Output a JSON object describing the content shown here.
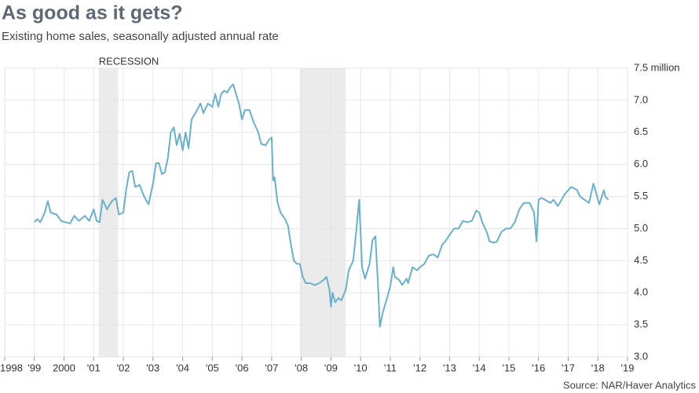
{
  "chart_data": {
    "type": "line",
    "title": "As good as it gets?",
    "subtitle": "Existing home sales, seasonally adjusted annual rate",
    "source": "Source: NAR/Haver Analytics",
    "annotations": [
      "RECESSION"
    ],
    "recessions": [
      [
        2001.17,
        2001.83
      ],
      [
        2007.95,
        2009.5
      ]
    ],
    "xlim": [
      1998,
      2019
    ],
    "xticks": [
      1998,
      {
        "value": 1999,
        "label": "'99"
      },
      2000,
      {
        "value": 2001,
        "label": "'01"
      },
      {
        "value": 2002,
        "label": "'02"
      },
      {
        "value": 2003,
        "label": "'03"
      },
      {
        "value": 2004,
        "label": "'04"
      },
      {
        "value": 2005,
        "label": "'05"
      },
      {
        "value": 2006,
        "label": "'06"
      },
      {
        "value": 2007,
        "label": "'07"
      },
      {
        "value": 2008,
        "label": "'08"
      },
      {
        "value": 2009,
        "label": "'09"
      },
      {
        "value": 2010,
        "label": "'10"
      },
      {
        "value": 2011,
        "label": "'11"
      },
      {
        "value": 2012,
        "label": "'12"
      },
      {
        "value": 2013,
        "label": "'13"
      },
      {
        "value": 2014,
        "label": "'14"
      },
      {
        "value": 2015,
        "label": "'15"
      },
      {
        "value": 2016,
        "label": "'16"
      },
      {
        "value": 2017,
        "label": "'17"
      },
      {
        "value": 2018,
        "label": "'18"
      },
      {
        "value": 2019,
        "label": "'19"
      }
    ],
    "ylim": [
      3.0,
      7.5
    ],
    "yticks": [
      {
        "value": 3.0,
        "label": "3.0"
      },
      3.5,
      {
        "value": 4.0,
        "label": "4.0"
      },
      4.5,
      {
        "value": 5.0,
        "label": "5.0"
      },
      5.5,
      {
        "value": 6.0,
        "label": "6.0"
      },
      6.5,
      {
        "value": 7.0,
        "label": "7.0"
      },
      {
        "value": 7.5,
        "label": "7.5 million"
      }
    ],
    "grid": true,
    "series": [
      {
        "name": "Existing home sales",
        "color": "#6ab0c9",
        "x": [
          1999.0,
          1999.1,
          1999.2,
          1999.35,
          1999.45,
          1999.55,
          1999.75,
          1999.9,
          2000.2,
          2000.35,
          2000.5,
          2000.7,
          2000.85,
          2001.0,
          2001.1,
          2001.2,
          2001.3,
          2001.45,
          2001.6,
          2001.75,
          2001.85,
          2002.0,
          2002.1,
          2002.2,
          2002.3,
          2002.4,
          2002.55,
          2002.7,
          2002.85,
          2003.0,
          2003.1,
          2003.2,
          2003.3,
          2003.4,
          2003.5,
          2003.6,
          2003.7,
          2003.8,
          2003.9,
          2004.0,
          2004.1,
          2004.2,
          2004.3,
          2004.45,
          2004.6,
          2004.7,
          2004.85,
          2005.0,
          2005.1,
          2005.2,
          2005.3,
          2005.4,
          2005.5,
          2005.6,
          2005.7,
          2005.8,
          2005.9,
          2006.0,
          2006.1,
          2006.25,
          2006.4,
          2006.55,
          2006.65,
          2006.8,
          2006.9,
          2007.0,
          2007.05,
          2007.1,
          2007.2,
          2007.3,
          2007.45,
          2007.55,
          2007.65,
          2007.75,
          2007.85,
          2007.95,
          2008.05,
          2008.15,
          2008.3,
          2008.45,
          2008.6,
          2008.75,
          2008.85,
          2008.95,
          2009.0,
          2009.05,
          2009.15,
          2009.25,
          2009.35,
          2009.5,
          2009.6,
          2009.75,
          2009.85,
          2009.95,
          2010.0,
          2010.05,
          2010.15,
          2010.3,
          2010.4,
          2010.5,
          2010.6,
          2010.65,
          2010.75,
          2010.85,
          2011.0,
          2011.1,
          2011.15,
          2011.3,
          2011.4,
          2011.55,
          2011.6,
          2011.75,
          2011.9,
          2012.0,
          2012.15,
          2012.3,
          2012.45,
          2012.6,
          2012.75,
          2012.85,
          2013.0,
          2013.15,
          2013.3,
          2013.45,
          2013.6,
          2013.75,
          2013.9,
          2014.0,
          2014.1,
          2014.25,
          2014.35,
          2014.5,
          2014.6,
          2014.75,
          2014.9,
          2015.05,
          2015.2,
          2015.35,
          2015.5,
          2015.7,
          2015.85,
          2015.93,
          2016.0,
          2016.1,
          2016.4,
          2016.5,
          2016.65,
          2016.9,
          2017.1,
          2017.3,
          2017.4,
          2017.7,
          2017.85,
          2018.05,
          2018.2,
          2018.25,
          2018.35
        ],
        "values": [
          5.1,
          5.15,
          5.1,
          5.25,
          5.43,
          5.25,
          5.22,
          5.12,
          5.08,
          5.2,
          5.12,
          5.2,
          5.12,
          5.3,
          5.12,
          5.1,
          5.45,
          5.3,
          5.42,
          5.48,
          5.22,
          5.25,
          5.62,
          5.88,
          5.9,
          5.65,
          5.68,
          5.5,
          5.38,
          5.7,
          6.02,
          6.02,
          5.85,
          5.88,
          6.1,
          6.5,
          6.58,
          6.3,
          6.48,
          6.22,
          6.5,
          6.25,
          6.7,
          6.82,
          6.95,
          6.8,
          6.95,
          6.9,
          7.1,
          6.9,
          7.1,
          7.15,
          7.12,
          7.2,
          7.25,
          7.1,
          6.95,
          6.7,
          6.85,
          6.85,
          6.65,
          6.5,
          6.32,
          6.3,
          6.38,
          6.42,
          5.75,
          5.8,
          5.4,
          5.25,
          5.15,
          5.05,
          4.75,
          4.5,
          4.45,
          4.45,
          4.25,
          4.15,
          4.15,
          4.12,
          4.15,
          4.2,
          4.25,
          4.05,
          3.78,
          4.0,
          3.85,
          3.92,
          3.88,
          4.05,
          4.35,
          4.5,
          4.95,
          5.45,
          4.95,
          4.4,
          4.22,
          4.45,
          4.82,
          4.88,
          4.0,
          3.47,
          3.7,
          3.85,
          4.1,
          4.4,
          4.25,
          4.2,
          4.12,
          4.22,
          4.15,
          4.4,
          4.35,
          4.4,
          4.45,
          4.58,
          4.6,
          4.55,
          4.75,
          4.8,
          4.9,
          5.0,
          5.0,
          5.12,
          5.1,
          5.12,
          5.28,
          5.25,
          5.1,
          4.95,
          4.8,
          4.78,
          4.8,
          4.95,
          5.0,
          5.0,
          5.1,
          5.3,
          5.4,
          5.4,
          5.25,
          4.8,
          5.45,
          5.48,
          5.4,
          5.45,
          5.35,
          5.55,
          5.65,
          5.6,
          5.5,
          5.4,
          5.7,
          5.38,
          5.6,
          5.5,
          5.45
        ]
      }
    ]
  }
}
